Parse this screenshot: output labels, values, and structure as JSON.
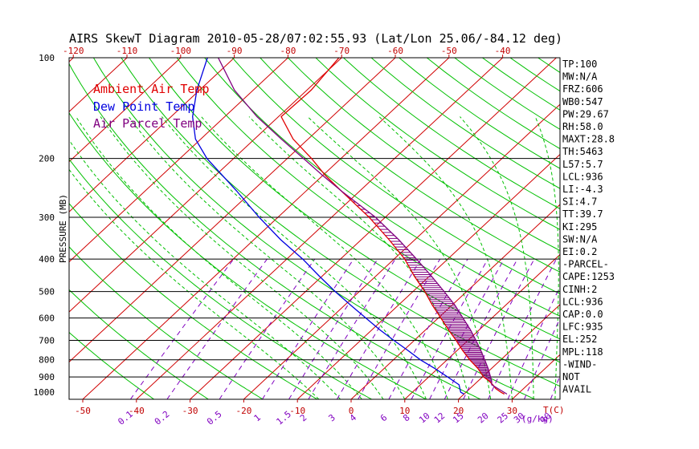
{
  "title": "AIRS SkewT Diagram 2010-05-28/07:02:55.93 (Lat/Lon 25.06/-84.12 deg)",
  "colors": {
    "ambient": "#e00000",
    "dewpoint": "#0000e0",
    "parcel": "#800080",
    "isotherm": "#d00000",
    "dry_adiabat": "#00c000",
    "moist_adiabat": "#00c000",
    "mixing_ratio": "#8000c0",
    "isobar": "#000000",
    "hatch": "#800080"
  },
  "legend": [
    "Ambient Air Temp",
    "Dew Point Temp",
    "Air Parcel Temp"
  ],
  "indices": [
    "TP:100",
    "MW:N/A",
    "FRZ:606",
    "WB0:547",
    "PW:29.67",
    "RH:58.0",
    "MAXT:28.8",
    "TH:5463",
    "L57:5.7",
    "LCL:936",
    "LI:-4.3",
    "SI:4.7",
    "TT:39.7",
    "KI:295",
    "SW:N/A",
    "EI:0.2",
    "-PARCEL-",
    "CAPE:1253",
    "CINH:2",
    "LCL:936",
    "CAP:0.0",
    "LFC:935",
    "EL:252",
    "MPL:118",
    "-WIND-",
    "NOT",
    "AVAIL"
  ],
  "chart_data": {
    "type": "skewt",
    "title": "AIRS SkewT Diagram 2010-05-28/07:02:55.93 (Lat/Lon 25.06/-84.12 deg)",
    "ylabel": "PRESSURE (MB)",
    "xlabel_bottom": "T(C)",
    "mixing_ratio_unit": "(g/kg)",
    "y_scale": "log",
    "y_ticks": [
      100,
      200,
      300,
      400,
      500,
      600,
      700,
      800,
      900,
      1000
    ],
    "bottom_ticks": [
      -50,
      -40,
      -30,
      -20,
      -10,
      0,
      10,
      20,
      30
    ],
    "top_ticks": [
      -120,
      -110,
      -100,
      -90,
      -80,
      -70,
      -60,
      -50,
      -40
    ],
    "mixing_ratio_labels": [
      "0.1",
      "0.2",
      "0.5",
      "1",
      "1.5",
      "2",
      "3",
      "4",
      "6",
      "8",
      "10",
      "12",
      "15",
      "20",
      "25",
      "30",
      "40"
    ],
    "isobars": [
      200,
      300,
      400,
      500,
      600,
      700,
      800,
      900
    ],
    "series": [
      {
        "name": "Ambient Air Temp",
        "points": [
          [
            1013,
            27.5
          ],
          [
            1000,
            26.5
          ],
          [
            975,
            24.8
          ],
          [
            950,
            23.5
          ],
          [
            925,
            22.0
          ],
          [
            900,
            20.2
          ],
          [
            850,
            17.5
          ],
          [
            800,
            14.2
          ],
          [
            750,
            11.0
          ],
          [
            700,
            7.8
          ],
          [
            650,
            4.2
          ],
          [
            600,
            0.5
          ],
          [
            550,
            -3.6
          ],
          [
            500,
            -7.8
          ],
          [
            450,
            -12.8
          ],
          [
            400,
            -18.0
          ],
          [
            350,
            -24.8
          ],
          [
            300,
            -33.0
          ],
          [
            250,
            -43.5
          ],
          [
            225,
            -49.5
          ],
          [
            200,
            -55.5
          ],
          [
            175,
            -62.8
          ],
          [
            150,
            -69.5
          ],
          [
            125,
            -69.2
          ],
          [
            100,
            -70.5
          ]
        ]
      },
      {
        "name": "Dew Point Temp",
        "points": [
          [
            1013,
            20.0
          ],
          [
            1000,
            19.0
          ],
          [
            950,
            17.2
          ],
          [
            900,
            13.5
          ],
          [
            850,
            9.5
          ],
          [
            800,
            5.0
          ],
          [
            750,
            0.8
          ],
          [
            700,
            -3.8
          ],
          [
            650,
            -8.6
          ],
          [
            600,
            -13.5
          ],
          [
            550,
            -18.8
          ],
          [
            500,
            -24.5
          ],
          [
            450,
            -30.5
          ],
          [
            400,
            -37.0
          ],
          [
            350,
            -45.0
          ],
          [
            300,
            -53.5
          ],
          [
            250,
            -63.0
          ],
          [
            200,
            -75.0
          ],
          [
            175,
            -81.0
          ],
          [
            150,
            -86.0
          ],
          [
            125,
            -90.5
          ],
          [
            100,
            -95.0
          ]
        ]
      },
      {
        "name": "Air Parcel Temp",
        "points": [
          [
            1013,
            28.0
          ],
          [
            950,
            23.3
          ],
          [
            925,
            22.5
          ],
          [
            900,
            21.5
          ],
          [
            850,
            19.4
          ],
          [
            800,
            17.0
          ],
          [
            750,
            14.4
          ],
          [
            700,
            11.5
          ],
          [
            650,
            8.3
          ],
          [
            600,
            4.6
          ],
          [
            550,
            0.6
          ],
          [
            500,
            -4.2
          ],
          [
            450,
            -9.6
          ],
          [
            400,
            -15.8
          ],
          [
            350,
            -23.0
          ],
          [
            300,
            -31.8
          ],
          [
            252,
            -43.0
          ],
          [
            225,
            -50.0
          ],
          [
            200,
            -57.0
          ],
          [
            175,
            -65.0
          ],
          [
            150,
            -74.0
          ],
          [
            125,
            -83.5
          ],
          [
            100,
            -93.0
          ]
        ]
      }
    ]
  }
}
